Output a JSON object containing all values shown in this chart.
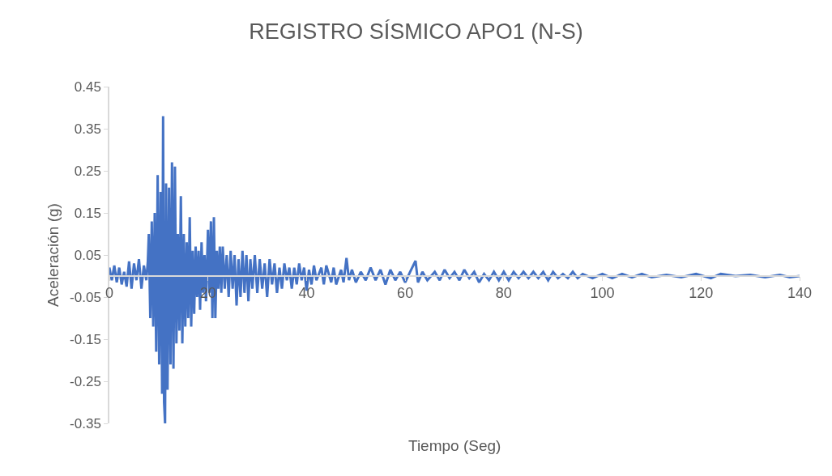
{
  "chart_data": {
    "type": "line",
    "title": "REGISTRO SÍSMICO APO1 (N-S)",
    "xlabel": "Tiempo (Seg)",
    "ylabel": "Aceleración (g)",
    "xlim": [
      0,
      140
    ],
    "xticks": [
      0,
      20,
      40,
      60,
      80,
      100,
      120,
      140
    ],
    "ylim": [
      -0.35,
      0.45
    ],
    "yticks": [
      -0.35,
      -0.25,
      -0.15,
      -0.05,
      0.05,
      0.15,
      0.25,
      0.35,
      0.45
    ],
    "grid": false,
    "marker": "none",
    "line_style": "solid",
    "series": [
      {
        "color": "#4472c4",
        "x": [
          0,
          0.5,
          1,
          1.5,
          2,
          2.5,
          3,
          3.5,
          4,
          4.5,
          5,
          5.5,
          6,
          6.5,
          7,
          7.5,
          7.8,
          8,
          8.3,
          8.6,
          8.9,
          9.2,
          9.5,
          9.8,
          10.1,
          10.4,
          10.7,
          10.9,
          11.1,
          11.3,
          11.5,
          11.8,
          12.1,
          12.4,
          12.7,
          13,
          13.3,
          13.6,
          13.9,
          14.2,
          14.5,
          14.8,
          15.1,
          15.4,
          15.7,
          16,
          16.3,
          16.6,
          16.9,
          17.2,
          17.5,
          17.8,
          18.1,
          18.4,
          18.7,
          19,
          19.3,
          19.6,
          20,
          20.3,
          20.6,
          20.9,
          21.2,
          21.5,
          21.8,
          22.1,
          22.4,
          22.7,
          23,
          23.4,
          23.8,
          24.2,
          24.6,
          25,
          25.4,
          25.8,
          26.2,
          26.6,
          27,
          27.4,
          27.8,
          28.2,
          28.6,
          29,
          29.5,
          30,
          30.5,
          31,
          31.5,
          32,
          32.5,
          33,
          33.5,
          34,
          34.5,
          35,
          35.5,
          36,
          36.5,
          37,
          37.5,
          38,
          38.5,
          39,
          39.5,
          40,
          40.5,
          41,
          41.5,
          42,
          43,
          43.5,
          44,
          45,
          45.5,
          46,
          47,
          47.5,
          48.1,
          48.6,
          49.2,
          50,
          51,
          52,
          53,
          54,
          55,
          56,
          57,
          58,
          59,
          60,
          61,
          62.1,
          62.6,
          63.5,
          64.5,
          66,
          67,
          68,
          69,
          70,
          71,
          72,
          73,
          74,
          75,
          76,
          77,
          78,
          79,
          80,
          81,
          82,
          83,
          84,
          85,
          86,
          87,
          88,
          89,
          90,
          91,
          92,
          93,
          94,
          95,
          96,
          98,
          100,
          102,
          104,
          106,
          108,
          110,
          113,
          116,
          119,
          122,
          124,
          127,
          130,
          133,
          136,
          138,
          140
        ],
        "values": [
          0.02,
          -0.01,
          0.025,
          -0.015,
          0.02,
          -0.02,
          0.01,
          -0.025,
          0.035,
          -0.03,
          0.03,
          -0.01,
          0.04,
          -0.03,
          0.025,
          -0.01,
          0.035,
          0.1,
          -0.1,
          0.13,
          -0.12,
          0.15,
          -0.18,
          0.24,
          -0.21,
          0.2,
          -0.28,
          0.38,
          -0.3,
          -0.35,
          0.22,
          -0.27,
          0.21,
          -0.21,
          0.27,
          -0.22,
          0.26,
          -0.16,
          0.1,
          -0.13,
          0.19,
          -0.16,
          0.1,
          -0.12,
          0.08,
          -0.1,
          0.14,
          -0.12,
          0.06,
          -0.09,
          0.07,
          -0.05,
          0.06,
          -0.08,
          0.08,
          -0.04,
          0.05,
          -0.06,
          0.11,
          -0.04,
          0.13,
          -0.1,
          0.14,
          -0.1,
          0.06,
          -0.03,
          0.07,
          -0.04,
          0.07,
          -0.03,
          0.05,
          -0.05,
          0.06,
          -0.03,
          0.05,
          -0.07,
          0.04,
          -0.05,
          0.06,
          -0.04,
          0.05,
          -0.06,
          0.04,
          -0.03,
          0.05,
          -0.04,
          0.04,
          -0.03,
          0.03,
          -0.05,
          0.04,
          -0.02,
          0.03,
          -0.04,
          0.02,
          -0.03,
          0.03,
          -0.01,
          0.02,
          -0.03,
          0.02,
          -0.02,
          0.03,
          -0.01,
          0.02,
          -0.035,
          0.015,
          -0.02,
          0.025,
          -0.01,
          0.02,
          -0.02,
          0.025,
          -0.015,
          0.02,
          -0.02,
          0.015,
          -0.015,
          0.043,
          -0.01,
          0.015,
          -0.015,
          0.01,
          -0.01,
          0.02,
          -0.01,
          0.015,
          -0.02,
          0.015,
          -0.01,
          0.01,
          -0.015,
          0.01,
          0.036,
          -0.015,
          0.01,
          -0.01,
          0.01,
          -0.01,
          0.015,
          -0.005,
          0.01,
          -0.01,
          0.015,
          -0.005,
          0.01,
          -0.015,
          0.005,
          -0.01,
          0.01,
          -0.01,
          0.01,
          -0.01,
          0.01,
          -0.005,
          0.01,
          -0.005,
          0.01,
          -0.005,
          0.01,
          -0.01,
          0.01,
          -0.005,
          0.005,
          -0.005,
          0.01,
          -0.005,
          0.005,
          -0.005,
          0.005,
          -0.005,
          0.005,
          -0.003,
          0.005,
          -0.003,
          0.003,
          -0.003,
          0.005,
          -0.005,
          0.005,
          0,
          0.003,
          -0.003,
          0.003,
          -0.003,
          0
        ]
      }
    ]
  }
}
